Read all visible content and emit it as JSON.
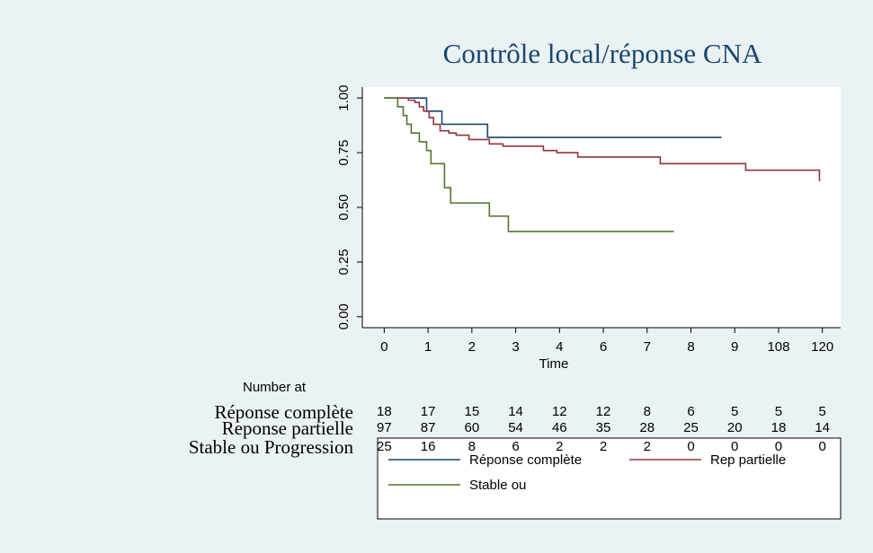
{
  "chart_data": {
    "type": "step",
    "title": "Contrôle local/réponse CNA",
    "x_label": "Time",
    "xlim": [
      -6,
      125
    ],
    "ylim": [
      -0.05,
      1.05
    ],
    "xticks": [
      0,
      {
        "value": 12,
        "label": "1"
      },
      {
        "value": 24,
        "label": "2"
      },
      {
        "value": 36,
        "label": "3"
      },
      {
        "value": 48,
        "label": "4"
      },
      {
        "value": 60,
        "label": "6"
      },
      {
        "value": 72,
        "label": "7"
      },
      {
        "value": 84,
        "label": "8"
      },
      {
        "value": 96,
        "label": "9"
      },
      108,
      120
    ],
    "yticks": [
      {
        "value": 0,
        "label": "0.00"
      },
      {
        "value": 0.25,
        "label": "0.25"
      },
      {
        "value": 0.5,
        "label": "0.50"
      },
      {
        "value": 0.75,
        "label": "0.75"
      },
      {
        "value": 1,
        "label": "1.00"
      }
    ],
    "series": [
      {
        "name": "Réponse complète",
        "color": "#1a476f",
        "x": [
          0,
          11.6,
          15.8,
          28.3,
          92.4
        ],
        "values": [
          1,
          0.94,
          0.88,
          0.82,
          0.82
        ]
      },
      {
        "name": "Rep partielle",
        "color": "#90353b",
        "x": [
          0,
          6.6,
          8.4,
          9.6,
          10.8,
          12.3,
          13.5,
          15.3,
          17.7,
          19.7,
          23.2,
          28.8,
          32.5,
          43.6,
          47.3,
          53,
          75.6,
          99,
          119.2
        ],
        "values": [
          1,
          0.99,
          0.98,
          0.96,
          0.94,
          0.91,
          0.88,
          0.85,
          0.84,
          0.83,
          0.81,
          0.79,
          0.78,
          0.76,
          0.75,
          0.73,
          0.7,
          0.67,
          0.62
        ]
      },
      {
        "name": "Stable ou",
        "color": "#55752f",
        "x": [
          0,
          3.7,
          5.2,
          6.2,
          7.4,
          9.6,
          11.6,
          12.8,
          16.5,
          18.2,
          28.8,
          34,
          79.3
        ],
        "values": [
          1,
          0.96,
          0.92,
          0.88,
          0.84,
          0.8,
          0.76,
          0.7,
          0.59,
          0.52,
          0.46,
          0.39,
          0.39
        ]
      }
    ],
    "risk_table": {
      "title": "Number at",
      "rows": [
        {
          "label": "Réponse complète",
          "values": [
            18,
            17,
            15,
            14,
            12,
            12,
            8,
            6,
            5,
            5,
            5
          ]
        },
        {
          "label": "Reponse partielle",
          "values": [
            97,
            87,
            60,
            54,
            46,
            35,
            28,
            25,
            20,
            18,
            14
          ]
        },
        {
          "label": "Stable ou Progression",
          "values": [
            25,
            16,
            8,
            6,
            2,
            2,
            2,
            0,
            0,
            0,
            0
          ]
        }
      ]
    }
  }
}
